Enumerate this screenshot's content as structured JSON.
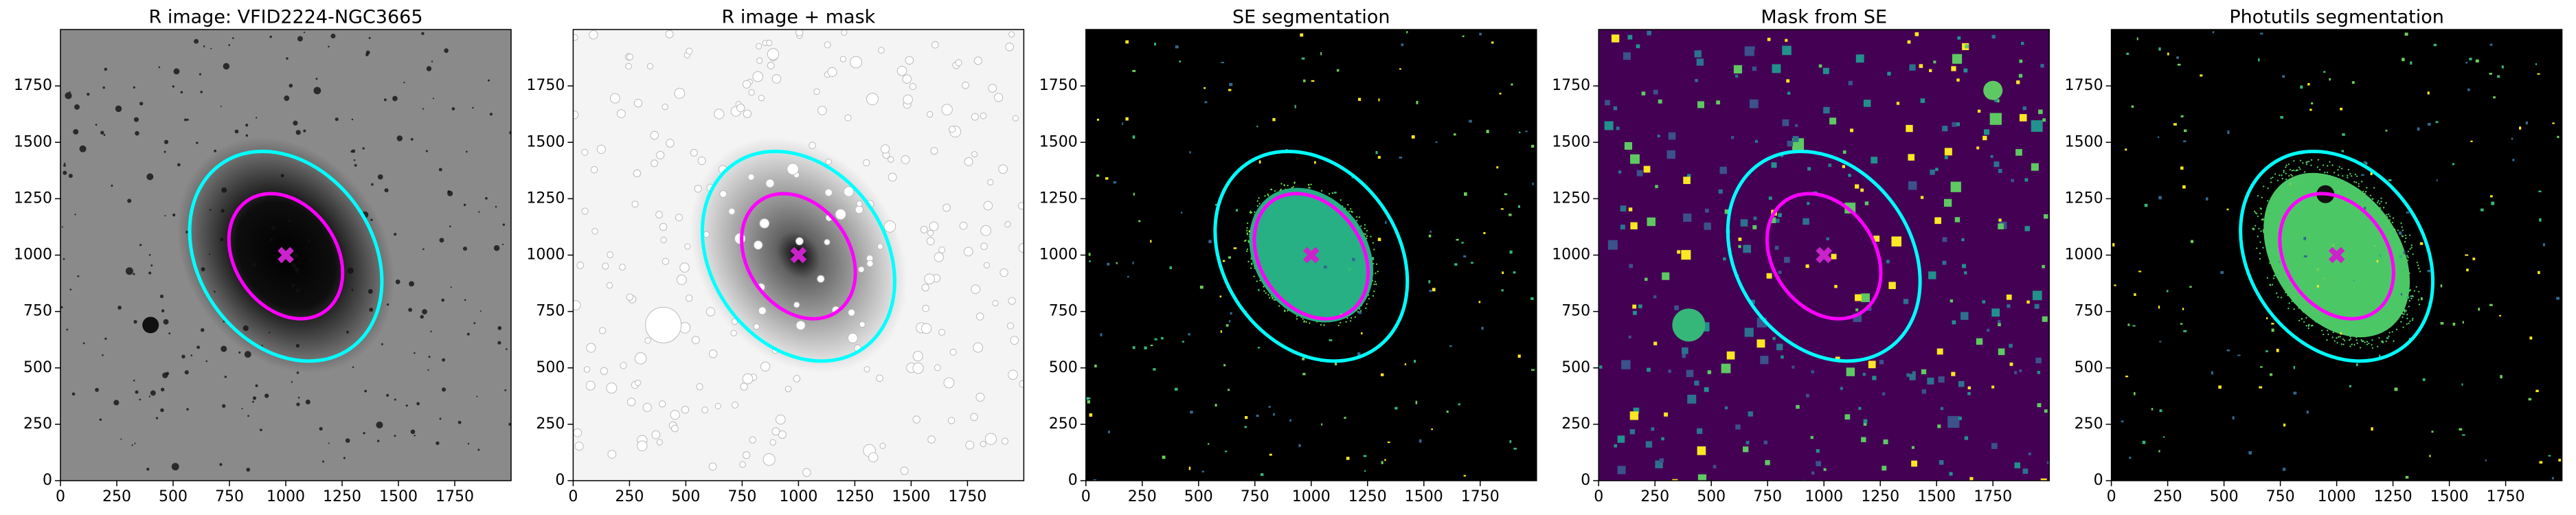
{
  "chart_data": [
    {
      "type": "image",
      "title": "R image: VFID2224-NGC3665",
      "background": "#8a8a8a",
      "xlim": [
        0,
        2000
      ],
      "ylim": [
        0,
        2000
      ],
      "xticks": [
        0,
        250,
        500,
        750,
        1000,
        1250,
        1500,
        1750
      ],
      "yticks": [
        0,
        250,
        500,
        750,
        1000,
        1250,
        1500,
        1750
      ],
      "ellipses": [
        {
          "color": "#00ffff",
          "x": 1000,
          "y": 995,
          "a": 500,
          "b": 385,
          "angle": 125
        },
        {
          "color": "#ff00ff",
          "x": 1000,
          "y": 995,
          "a": 300,
          "b": 225,
          "angle": 125
        }
      ],
      "marker": {
        "x": 1000,
        "y": 1000,
        "color": "#cc22cc"
      }
    },
    {
      "type": "image",
      "title": "R image + mask",
      "background": "#f4f4f4",
      "xlim": [
        0,
        2000
      ],
      "ylim": [
        0,
        2000
      ],
      "xticks": [
        0,
        250,
        500,
        750,
        1000,
        1250,
        1500,
        1750
      ],
      "yticks": [
        0,
        250,
        500,
        750,
        1000,
        1250,
        1500,
        1750
      ],
      "ellipses": [
        {
          "color": "#00ffff",
          "x": 1000,
          "y": 995,
          "a": 500,
          "b": 385,
          "angle": 125
        },
        {
          "color": "#ff00ff",
          "x": 1000,
          "y": 995,
          "a": 300,
          "b": 225,
          "angle": 125
        }
      ],
      "marker": {
        "x": 1000,
        "y": 1000,
        "color": "#cc22cc"
      }
    },
    {
      "type": "image",
      "title": "SE segmentation",
      "background": "#000000",
      "xlim": [
        0,
        2000
      ],
      "ylim": [
        0,
        2000
      ],
      "xticks": [
        0,
        250,
        500,
        750,
        1000,
        1250,
        1500,
        1750
      ],
      "yticks": [
        0,
        250,
        500,
        750,
        1000,
        1250,
        1500,
        1750
      ],
      "ellipses": [
        {
          "color": "#00ffff",
          "x": 1000,
          "y": 995,
          "a": 500,
          "b": 385,
          "angle": 125
        },
        {
          "color": "#ff00ff",
          "x": 1000,
          "y": 995,
          "a": 300,
          "b": 225,
          "angle": 125
        }
      ],
      "marker": {
        "x": 1000,
        "y": 1000,
        "color": "#cc22cc"
      }
    },
    {
      "type": "image",
      "title": "Mask from SE",
      "background": "#440154",
      "xlim": [
        0,
        2000
      ],
      "ylim": [
        0,
        2000
      ],
      "xticks": [
        0,
        250,
        500,
        750,
        1000,
        1250,
        1500,
        1750
      ],
      "yticks": [
        0,
        250,
        500,
        750,
        1000,
        1250,
        1500,
        1750
      ],
      "ellipses": [
        {
          "color": "#00ffff",
          "x": 1000,
          "y": 995,
          "a": 500,
          "b": 385,
          "angle": 125
        },
        {
          "color": "#ff00ff",
          "x": 1000,
          "y": 995,
          "a": 300,
          "b": 225,
          "angle": 125
        }
      ],
      "marker": {
        "x": 1000,
        "y": 1000,
        "color": "#cc22cc"
      }
    },
    {
      "type": "image",
      "title": "Photutils segmentation",
      "background": "#000000",
      "xlim": [
        0,
        2000
      ],
      "ylim": [
        0,
        2000
      ],
      "xticks": [
        0,
        250,
        500,
        750,
        1000,
        1250,
        1500,
        1750
      ],
      "yticks": [
        0,
        250,
        500,
        750,
        1000,
        1250,
        1500,
        1750
      ],
      "ellipses": [
        {
          "color": "#00ffff",
          "x": 1000,
          "y": 995,
          "a": 500,
          "b": 385,
          "angle": 125
        },
        {
          "color": "#ff00ff",
          "x": 1000,
          "y": 995,
          "a": 300,
          "b": 225,
          "angle": 125
        }
      ],
      "marker": {
        "x": 1000,
        "y": 1000,
        "color": "#cc22cc"
      }
    }
  ]
}
